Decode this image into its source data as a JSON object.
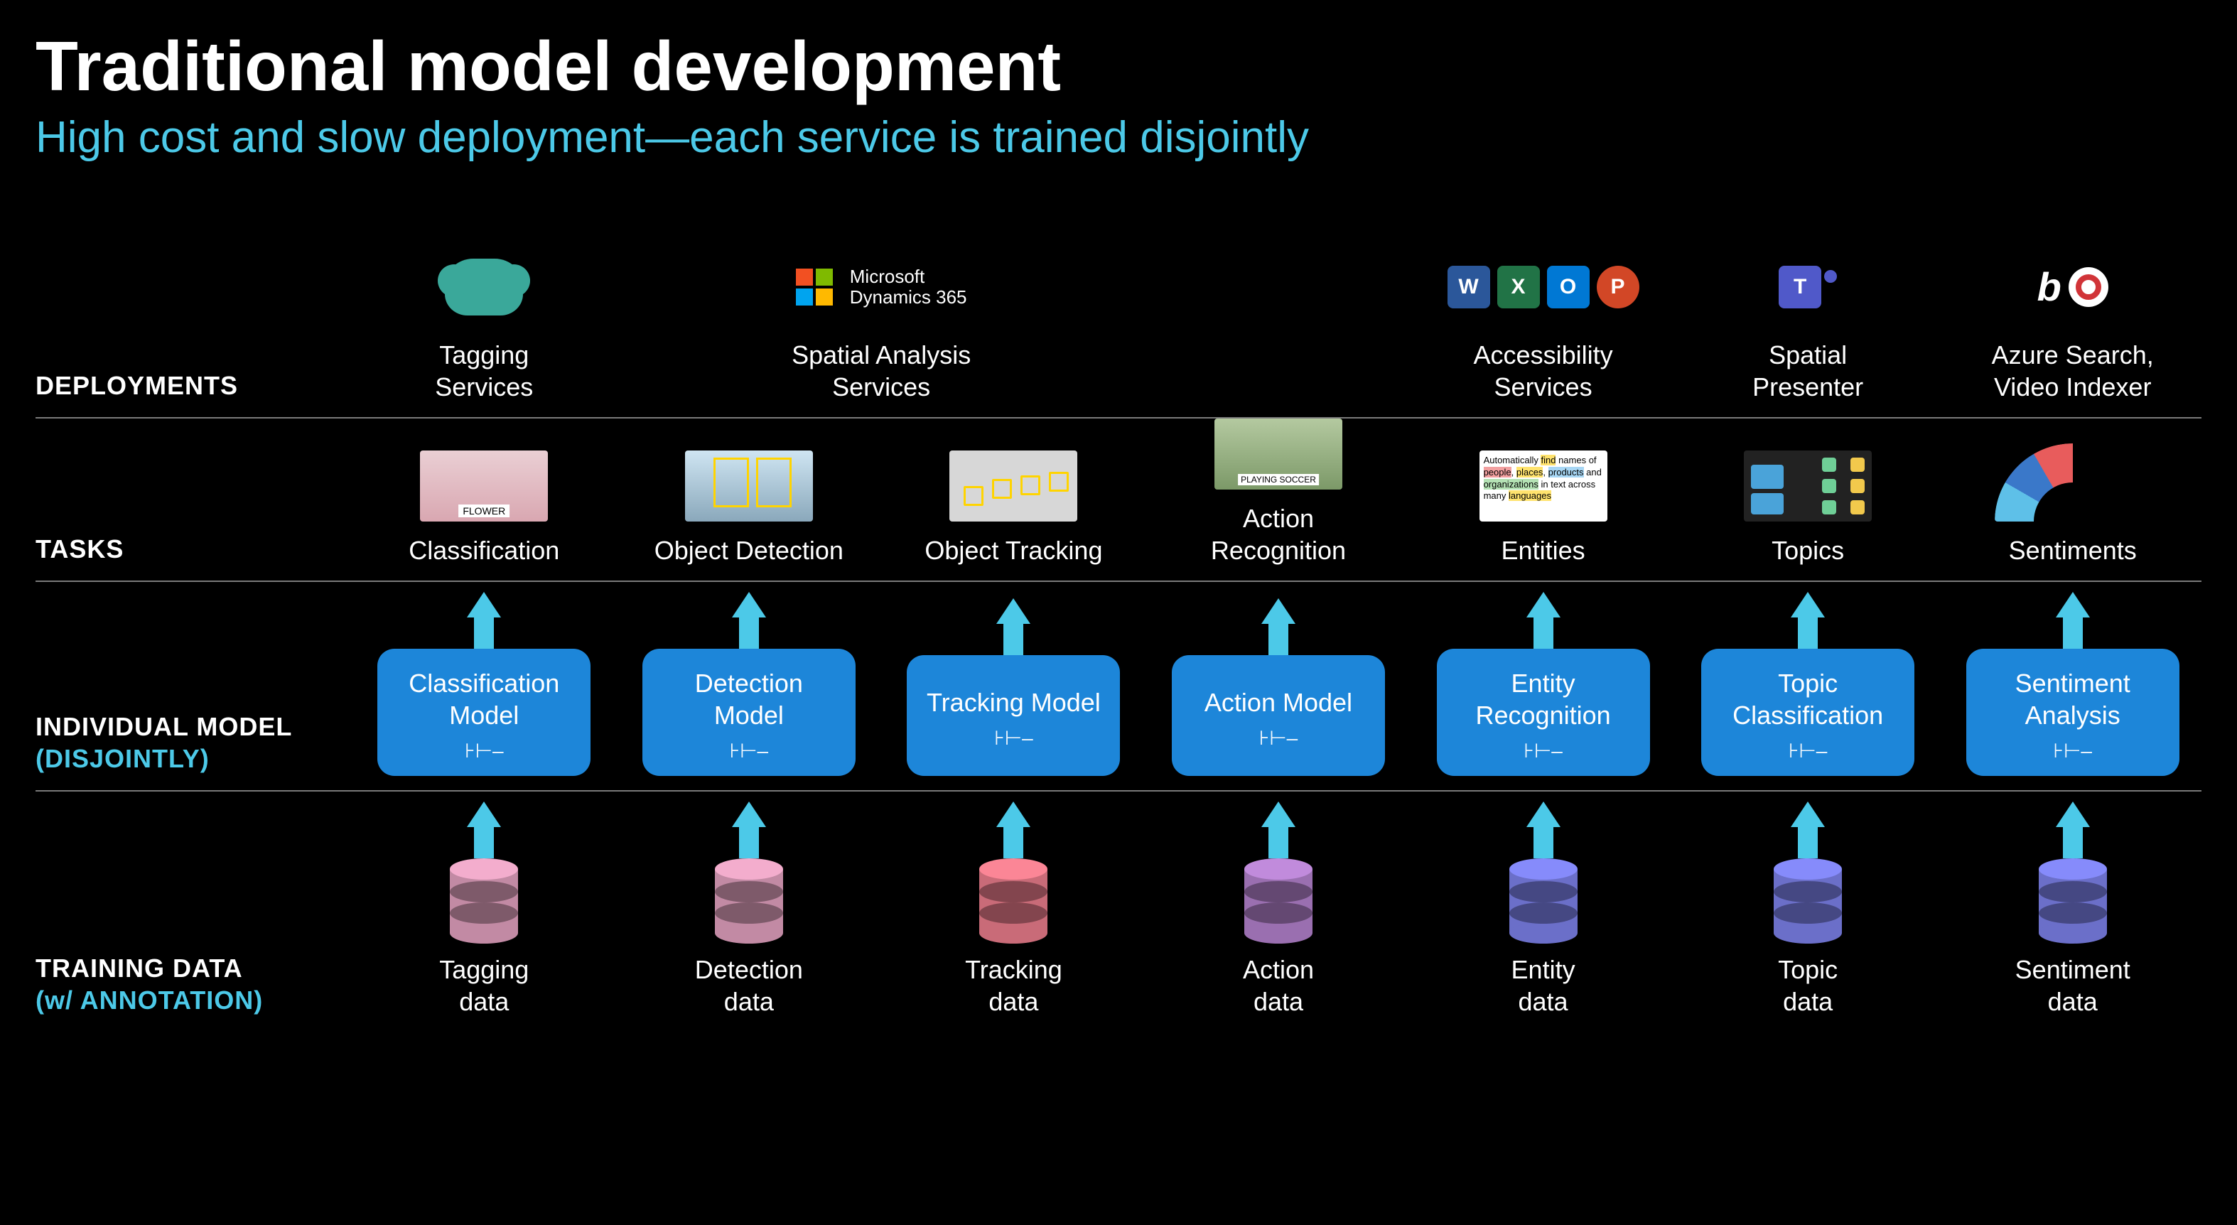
{
  "title": "Traditional model development",
  "subtitle": "High cost and slow deployment—each service is trained disjointly",
  "labels": {
    "deployments": "DEPLOYMENTS",
    "tasks": "TASKS",
    "models_line1": "INDIVIDUAL MODEL",
    "models_line2": "(DISJOINTLY)",
    "data_line1": "TRAINING DATA",
    "data_line2": "(w/ ANNOTATION)"
  },
  "colors": {
    "background": "#000000",
    "text": "#ffffff",
    "accent": "#4cc9e8",
    "arrow": "#4cc9e8",
    "model_box": "#1d86d9",
    "divider": "#7a7a7a"
  },
  "typography": {
    "title_fontsize_pt": 74,
    "subtitle_fontsize_pt": 46,
    "row_label_fontsize_pt": 27,
    "cell_label_fontsize_pt": 27
  },
  "deployments": [
    {
      "id": "tagging",
      "label": "Tagging\nServices",
      "icon": "brain",
      "span_cols": 1
    },
    {
      "id": "spatial",
      "label": "Spatial Analysis\nServices",
      "icon": "ms365",
      "span_cols": 2,
      "ms_text_line1": "Microsoft",
      "ms_text_line2": "Dynamics 365"
    },
    {
      "id": "blank",
      "label": "",
      "icon": "none",
      "span_cols": 1
    },
    {
      "id": "access",
      "label": "Accessibility\nServices",
      "icon": "office",
      "span_cols": 1
    },
    {
      "id": "presenter",
      "label": "Spatial\nPresenter",
      "icon": "teams",
      "span_cols": 1
    },
    {
      "id": "search",
      "label": "Azure Search,\nVideo Indexer",
      "icon": "bing",
      "span_cols": 1
    }
  ],
  "columns": [
    {
      "task": "Classification",
      "model": "Classification\nModel",
      "data": "Tagging\ndata",
      "db_color": "#c28aa4",
      "thumb": "flower"
    },
    {
      "task": "Object Detection",
      "model": "Detection\nModel",
      "data": "Detection\ndata",
      "db_color": "#c28aa4",
      "thumb": "eagle"
    },
    {
      "task": "Object Tracking",
      "model": "Tracking\nModel",
      "data": "Tracking\ndata",
      "db_color": "#c96b78",
      "thumb": "track"
    },
    {
      "task": "Action\nRecognition",
      "model": "Action\nModel",
      "data": "Action\ndata",
      "db_color": "#9a6fb0",
      "thumb": "action"
    },
    {
      "task": "Entities",
      "model": "Entity\nRecognition",
      "data": "Entity\ndata",
      "db_color": "#6b6fc9",
      "thumb": "entities"
    },
    {
      "task": "Topics",
      "model": "Topic\nClassification",
      "data": "Topic\ndata",
      "db_color": "#6b6fc9",
      "thumb": "topics"
    },
    {
      "task": "Sentiments",
      "model": "Sentiment\nAnalysis",
      "data": "Sentiment\ndata",
      "db_color": "#6b6fc9",
      "thumb": "sent"
    }
  ],
  "sentiment_gauge_colors": [
    "#f4a73b",
    "#f2d54a",
    "#b6d96a",
    "#5ec0e8",
    "#3a78c9",
    "#e85c5c"
  ],
  "office_tiles": [
    {
      "letter": "W",
      "class": "tile-w"
    },
    {
      "letter": "X",
      "class": "tile-x"
    },
    {
      "letter": "O",
      "class": "tile-o"
    },
    {
      "letter": "P",
      "class": "tile-p"
    }
  ]
}
